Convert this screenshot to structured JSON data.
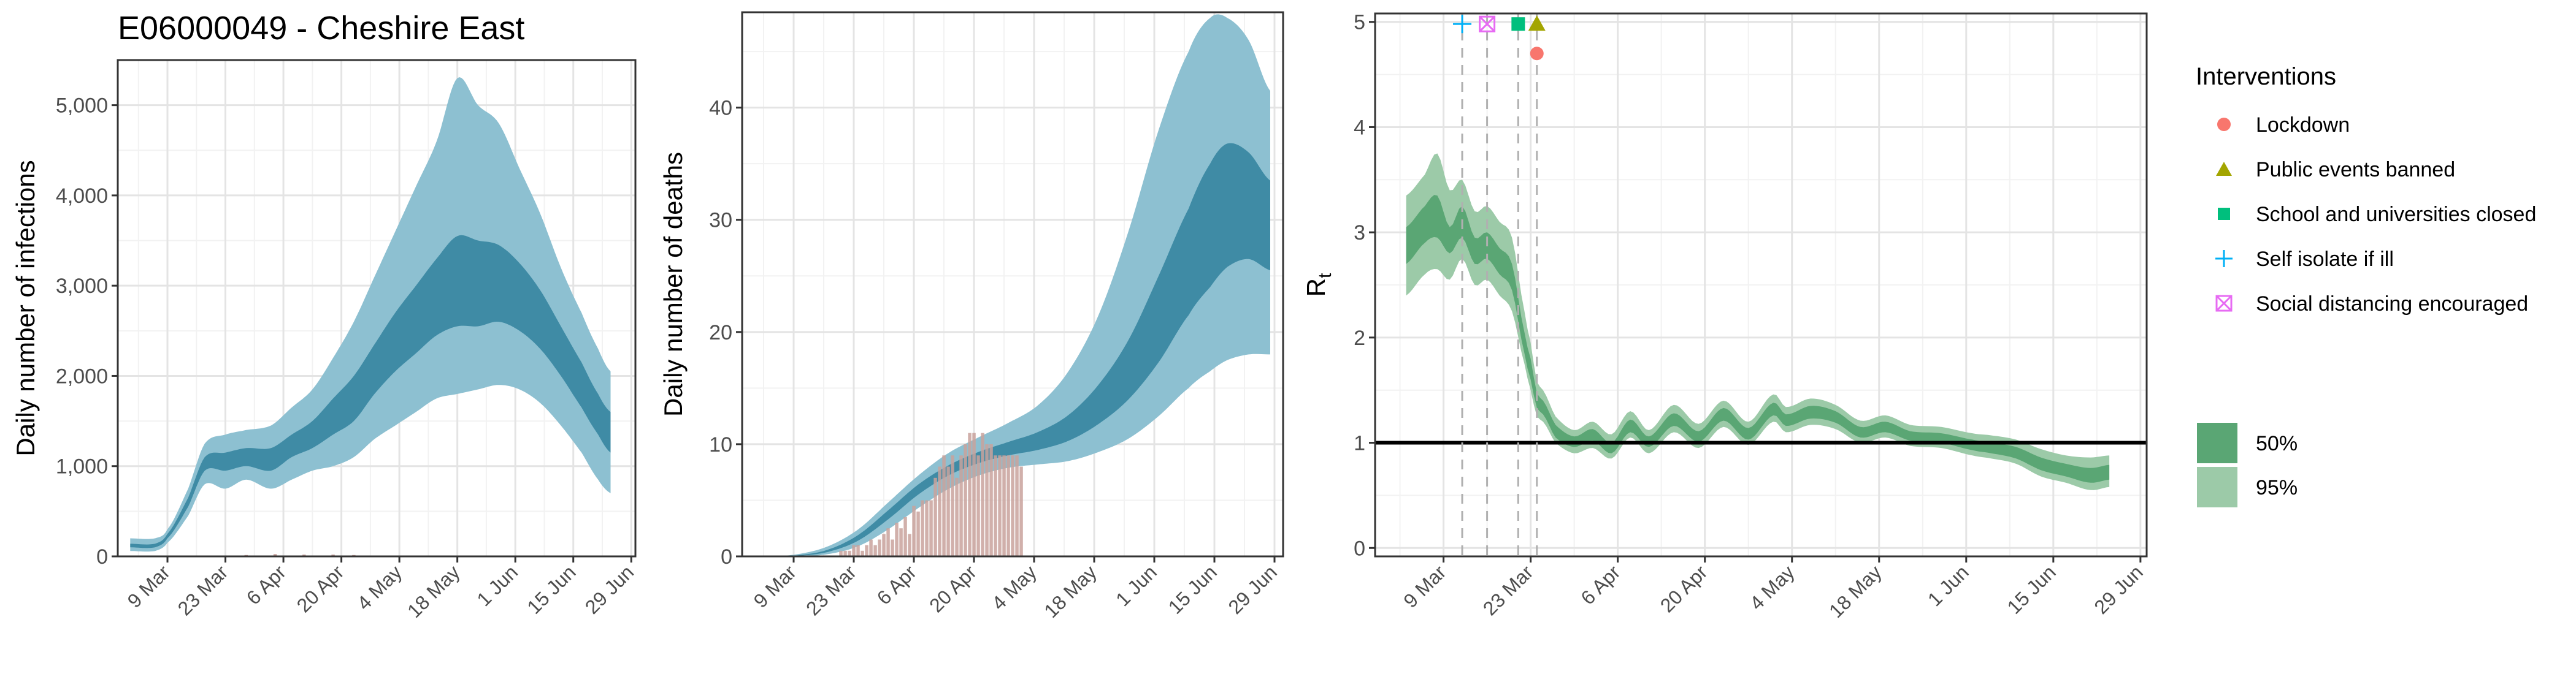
{
  "title": "E06000049 - Cheshire East",
  "colors": {
    "infection_band_95": "#8dc0d1",
    "infection_band_50": "#3f8ba5",
    "deaths_band_95": "#8dc0d1",
    "deaths_band_50": "#3f8ba5",
    "observed_deaths_bar": "#c9a29c",
    "rt_band_95": "#9ccaa8",
    "rt_band_50": "#5aa674",
    "rt_reference_line": "#000000",
    "lockdown": "#f8766d",
    "public_events_banned": "#a3a500",
    "school_closed": "#00bf7d",
    "self_isolate": "#00b0f6",
    "social_distancing": "#e76bf3"
  },
  "legend": {
    "interventions_title": "Interventions",
    "items": [
      {
        "label": "Lockdown",
        "icon": "circle-icon"
      },
      {
        "label": "Public events banned",
        "icon": "triangle-icon"
      },
      {
        "label": "School and universities closed",
        "icon": "square-icon"
      },
      {
        "label": "Self isolate if ill",
        "icon": "plus-icon"
      },
      {
        "label": "Social distancing encouraged",
        "icon": "boxed-x-icon"
      }
    ],
    "bands": [
      {
        "label": "50%"
      },
      {
        "label": "95%"
      }
    ]
  },
  "chart_data": [
    {
      "type": "area",
      "id": "infections",
      "title": "E06000049 - Cheshire East",
      "xlabel": "",
      "ylabel": "Daily number of infections",
      "x_start": "2020-02-29",
      "x_end": "2020-06-24",
      "xlim": [
        "2020-02-26",
        "2020-06-30"
      ],
      "ylim": [
        0,
        5500
      ],
      "x_ticks": [
        "9 Mar",
        "23 Mar",
        "6 Apr",
        "20 Apr",
        "4 May",
        "18 May",
        "1 Jun",
        "15 Jun",
        "29 Jun"
      ],
      "x_tick_dates": [
        "2020-03-09",
        "2020-03-23",
        "2020-04-06",
        "2020-04-20",
        "2020-05-04",
        "2020-05-18",
        "2020-06-01",
        "2020-06-15",
        "2020-06-29"
      ],
      "y_ticks": [
        "0",
        "1,000",
        "2,000",
        "3,000",
        "4,000",
        "5,000"
      ],
      "y_tick_values": [
        0,
        1000,
        2000,
        3000,
        4000,
        5000
      ],
      "grid": true,
      "knots": [
        {
          "x": "2020-02-29",
          "lo95": 60,
          "lo50": 100,
          "hi50": 140,
          "hi95": 200
        },
        {
          "x": "2020-03-06",
          "lo95": 60,
          "lo50": 100,
          "hi50": 140,
          "hi95": 200
        },
        {
          "x": "2020-03-09",
          "lo95": 150,
          "lo50": 200,
          "hi50": 250,
          "hi95": 300
        },
        {
          "x": "2020-03-14",
          "lo95": 450,
          "lo50": 550,
          "hi50": 650,
          "hi95": 750
        },
        {
          "x": "2020-03-18",
          "lo95": 800,
          "lo50": 950,
          "hi50": 1100,
          "hi95": 1250
        },
        {
          "x": "2020-03-23",
          "lo95": 750,
          "lo50": 950,
          "hi50": 1150,
          "hi95": 1350
        },
        {
          "x": "2020-03-28",
          "lo95": 850,
          "lo50": 1000,
          "hi50": 1200,
          "hi95": 1400
        },
        {
          "x": "2020-04-03",
          "lo95": 750,
          "lo50": 950,
          "hi50": 1200,
          "hi95": 1450
        },
        {
          "x": "2020-04-08",
          "lo95": 850,
          "lo50": 1100,
          "hi50": 1350,
          "hi95": 1650
        },
        {
          "x": "2020-04-13",
          "lo95": 950,
          "lo50": 1200,
          "hi50": 1500,
          "hi95": 1850
        },
        {
          "x": "2020-04-18",
          "lo95": 1000,
          "lo50": 1350,
          "hi50": 1750,
          "hi95": 2200
        },
        {
          "x": "2020-04-23",
          "lo95": 1100,
          "lo50": 1500,
          "hi50": 2000,
          "hi95": 2600
        },
        {
          "x": "2020-04-28",
          "lo95": 1300,
          "lo50": 1800,
          "hi50": 2350,
          "hi95": 3100
        },
        {
          "x": "2020-05-03",
          "lo95": 1450,
          "lo50": 2050,
          "hi50": 2700,
          "hi95": 3600
        },
        {
          "x": "2020-05-08",
          "lo95": 1600,
          "lo50": 2250,
          "hi50": 3000,
          "hi95": 4100
        },
        {
          "x": "2020-05-13",
          "lo95": 1750,
          "lo50": 2450,
          "hi50": 3300,
          "hi95": 4600
        },
        {
          "x": "2020-05-18",
          "lo95": 1800,
          "lo50": 2550,
          "hi50": 3550,
          "hi95": 5300
        },
        {
          "x": "2020-05-23",
          "lo95": 1850,
          "lo50": 2550,
          "hi50": 3500,
          "hi95": 5000
        },
        {
          "x": "2020-05-28",
          "lo95": 1900,
          "lo50": 2600,
          "hi50": 3450,
          "hi95": 4800
        },
        {
          "x": "2020-06-02",
          "lo95": 1850,
          "lo50": 2500,
          "hi50": 3250,
          "hi95": 4300
        },
        {
          "x": "2020-06-07",
          "lo95": 1700,
          "lo50": 2300,
          "hi50": 2950,
          "hi95": 3800
        },
        {
          "x": "2020-06-12",
          "lo95": 1450,
          "lo50": 2000,
          "hi50": 2550,
          "hi95": 3200
        },
        {
          "x": "2020-06-17",
          "lo95": 1150,
          "lo50": 1650,
          "hi50": 2150,
          "hi95": 2700
        },
        {
          "x": "2020-06-21",
          "lo95": 850,
          "lo50": 1350,
          "hi50": 1800,
          "hi95": 2300
        },
        {
          "x": "2020-06-24",
          "lo95": 700,
          "lo50": 1150,
          "hi50": 1600,
          "hi95": 2050
        }
      ],
      "observed": [
        {
          "x": "2020-03-28",
          "y": 15
        },
        {
          "x": "2020-04-04",
          "y": 25
        },
        {
          "x": "2020-04-11",
          "y": 20
        },
        {
          "x": "2020-04-18",
          "y": 20
        },
        {
          "x": "2020-04-23",
          "y": 15
        }
      ]
    },
    {
      "type": "area",
      "id": "deaths",
      "title": "",
      "xlabel": "",
      "ylabel": "Daily number of deaths",
      "x_start": "2020-03-03",
      "x_end": "2020-06-28",
      "xlim": [
        "2020-02-26",
        "2020-07-01"
      ],
      "ylim": [
        0,
        48.5
      ],
      "x_ticks": [
        "9 Mar",
        "23 Mar",
        "6 Apr",
        "20 Apr",
        "4 May",
        "18 May",
        "1 Jun",
        "15 Jun",
        "29 Jun"
      ],
      "x_tick_dates": [
        "2020-03-09",
        "2020-03-23",
        "2020-04-06",
        "2020-04-20",
        "2020-05-04",
        "2020-05-18",
        "2020-06-01",
        "2020-06-15",
        "2020-06-29"
      ],
      "y_ticks": [
        "0",
        "10",
        "20",
        "30",
        "40"
      ],
      "y_tick_values": [
        0,
        10,
        20,
        30,
        40
      ],
      "grid": true,
      "knots": [
        {
          "x": "2020-03-03",
          "lo95": 0,
          "lo50": 0,
          "hi50": 0,
          "hi95": 0
        },
        {
          "x": "2020-03-10",
          "lo95": 0,
          "lo50": 0.05,
          "hi50": 0.1,
          "hi95": 0.2
        },
        {
          "x": "2020-03-17",
          "lo95": 0.2,
          "lo50": 0.4,
          "hi50": 0.6,
          "hi95": 0.9
        },
        {
          "x": "2020-03-24",
          "lo95": 0.9,
          "lo50": 1.4,
          "hi50": 1.9,
          "hi95": 2.4
        },
        {
          "x": "2020-03-31",
          "lo95": 2.4,
          "lo50": 3.3,
          "hi50": 4.1,
          "hi95": 4.8
        },
        {
          "x": "2020-04-07",
          "lo95": 4.3,
          "lo50": 5.5,
          "hi50": 6.4,
          "hi95": 7.2
        },
        {
          "x": "2020-04-14",
          "lo95": 6.0,
          "lo50": 7.2,
          "hi50": 8.1,
          "hi95": 9.2
        },
        {
          "x": "2020-04-21",
          "lo95": 7.2,
          "lo50": 8.3,
          "hi50": 9.3,
          "hi95": 10.6
        },
        {
          "x": "2020-04-28",
          "lo95": 7.9,
          "lo50": 9.0,
          "hi50": 10.2,
          "hi95": 11.9
        },
        {
          "x": "2020-05-05",
          "lo95": 8.2,
          "lo50": 9.5,
          "hi50": 11.1,
          "hi95": 13.5
        },
        {
          "x": "2020-05-12",
          "lo95": 8.5,
          "lo50": 10.3,
          "hi50": 12.6,
          "hi95": 16.5
        },
        {
          "x": "2020-05-19",
          "lo95": 9.3,
          "lo50": 11.8,
          "hi50": 15.3,
          "hi95": 21.5
        },
        {
          "x": "2020-05-26",
          "lo95": 10.5,
          "lo50": 14.0,
          "hi50": 19.3,
          "hi95": 29.0
        },
        {
          "x": "2020-06-02",
          "lo95": 12.5,
          "lo50": 17.3,
          "hi50": 25.0,
          "hi95": 38.0
        },
        {
          "x": "2020-06-09",
          "lo95": 15.0,
          "lo50": 21.5,
          "hi50": 31.0,
          "hi95": 45.0
        },
        {
          "x": "2020-06-14",
          "lo95": 16.5,
          "lo50": 24.0,
          "hi50": 35.0,
          "hi95": 48.0
        },
        {
          "x": "2020-06-18",
          "lo95": 17.5,
          "lo50": 25.8,
          "hi50": 36.8,
          "hi95": 48.0
        },
        {
          "x": "2020-06-23",
          "lo95": 18.0,
          "lo50": 26.5,
          "hi50": 36.0,
          "hi95": 46.0
        },
        {
          "x": "2020-06-28",
          "lo95": 18.0,
          "lo50": 25.5,
          "hi50": 33.5,
          "hi95": 41.5
        }
      ],
      "bars": [
        {
          "x": "2020-03-20",
          "y": 0.5
        },
        {
          "x": "2020-03-21",
          "y": 0.5
        },
        {
          "x": "2020-03-22",
          "y": 0.5
        },
        {
          "x": "2020-03-23",
          "y": 1
        },
        {
          "x": "2020-03-24",
          "y": 1
        },
        {
          "x": "2020-03-25",
          "y": 0.5
        },
        {
          "x": "2020-03-26",
          "y": 1
        },
        {
          "x": "2020-03-27",
          "y": 1.5
        },
        {
          "x": "2020-03-28",
          "y": 1
        },
        {
          "x": "2020-03-29",
          "y": 1.5
        },
        {
          "x": "2020-03-30",
          "y": 2
        },
        {
          "x": "2020-03-31",
          "y": 2.5
        },
        {
          "x": "2020-04-01",
          "y": 1.5
        },
        {
          "x": "2020-04-02",
          "y": 3
        },
        {
          "x": "2020-04-03",
          "y": 2.5
        },
        {
          "x": "2020-04-04",
          "y": 3.5
        },
        {
          "x": "2020-04-05",
          "y": 2
        },
        {
          "x": "2020-04-06",
          "y": 4.5
        },
        {
          "x": "2020-04-07",
          "y": 4
        },
        {
          "x": "2020-04-08",
          "y": 5
        },
        {
          "x": "2020-04-09",
          "y": 5
        },
        {
          "x": "2020-04-10",
          "y": 5
        },
        {
          "x": "2020-04-11",
          "y": 7
        },
        {
          "x": "2020-04-12",
          "y": 8
        },
        {
          "x": "2020-04-13",
          "y": 9
        },
        {
          "x": "2020-04-14",
          "y": 8
        },
        {
          "x": "2020-04-15",
          "y": 9
        },
        {
          "x": "2020-04-16",
          "y": 7
        },
        {
          "x": "2020-04-17",
          "y": 9
        },
        {
          "x": "2020-04-18",
          "y": 10
        },
        {
          "x": "2020-04-19",
          "y": 11
        },
        {
          "x": "2020-04-20",
          "y": 11
        },
        {
          "x": "2020-04-21",
          "y": 9
        },
        {
          "x": "2020-04-22",
          "y": 11
        },
        {
          "x": "2020-04-23",
          "y": 10
        },
        {
          "x": "2020-04-24",
          "y": 10
        },
        {
          "x": "2020-04-25",
          "y": 9
        },
        {
          "x": "2020-04-26",
          "y": 9
        },
        {
          "x": "2020-04-27",
          "y": 9
        },
        {
          "x": "2020-04-28",
          "y": 9
        },
        {
          "x": "2020-04-29",
          "y": 9
        },
        {
          "x": "2020-04-30",
          "y": 9
        },
        {
          "x": "2020-05-01",
          "y": 8
        }
      ]
    },
    {
      "type": "line",
      "id": "rt",
      "title": "",
      "xlabel": "",
      "ylabel": "R",
      "ylabel_subscript": "t",
      "x_start": "2020-03-03",
      "x_end": "2020-06-24",
      "xlim": [
        "2020-02-27",
        "2020-06-30"
      ],
      "ylim": [
        -0.08,
        5.08
      ],
      "x_ticks": [
        "9 Mar",
        "23 Mar",
        "6 Apr",
        "20 Apr",
        "4 May",
        "18 May",
        "1 Jun",
        "15 Jun",
        "29 Jun"
      ],
      "x_tick_dates": [
        "2020-03-09",
        "2020-03-23",
        "2020-04-06",
        "2020-04-20",
        "2020-05-04",
        "2020-05-18",
        "2020-06-01",
        "2020-06-15",
        "2020-06-29"
      ],
      "y_ticks": [
        "0",
        "1",
        "2",
        "3",
        "4",
        "5"
      ],
      "y_tick_values": [
        0,
        1,
        2,
        3,
        4,
        5
      ],
      "grid": true,
      "reference_line": 1,
      "knots": [
        {
          "x": "2020-03-03",
          "lo95": 2.4,
          "lo50": 2.7,
          "hi50": 3.05,
          "hi95": 3.35
        },
        {
          "x": "2020-03-06",
          "lo95": 2.6,
          "lo50": 2.9,
          "hi50": 3.25,
          "hi95": 3.55
        },
        {
          "x": "2020-03-08",
          "lo95": 2.65,
          "lo50": 2.95,
          "hi50": 3.35,
          "hi95": 3.75
        },
        {
          "x": "2020-03-10",
          "lo95": 2.55,
          "lo50": 2.8,
          "hi50": 3.05,
          "hi95": 3.4
        },
        {
          "x": "2020-03-12",
          "lo95": 2.75,
          "lo50": 2.95,
          "hi50": 3.25,
          "hi95": 3.5
        },
        {
          "x": "2020-03-14",
          "lo95": 2.5,
          "lo50": 2.7,
          "hi50": 2.95,
          "hi95": 3.2
        },
        {
          "x": "2020-03-16",
          "lo95": 2.55,
          "lo50": 2.75,
          "hi50": 3.0,
          "hi95": 3.25
        },
        {
          "x": "2020-03-18",
          "lo95": 2.4,
          "lo50": 2.6,
          "hi50": 2.85,
          "hi95": 3.1
        },
        {
          "x": "2020-03-20",
          "lo95": 2.25,
          "lo50": 2.45,
          "hi50": 2.7,
          "hi95": 2.95
        },
        {
          "x": "2020-03-22",
          "lo95": 1.75,
          "lo50": 1.85,
          "hi50": 2.05,
          "hi95": 2.25
        },
        {
          "x": "2020-03-23",
          "lo95": 1.5,
          "lo50": 1.6,
          "hi50": 1.8,
          "hi95": 1.95
        },
        {
          "x": "2020-03-24",
          "lo95": 1.25,
          "lo50": 1.33,
          "hi50": 1.47,
          "hi95": 1.58
        },
        {
          "x": "2020-03-25",
          "lo95": 1.2,
          "lo50": 1.27,
          "hi50": 1.4,
          "hi95": 1.5
        },
        {
          "x": "2020-03-27",
          "lo95": 1.0,
          "lo50": 1.05,
          "hi50": 1.17,
          "hi95": 1.25
        },
        {
          "x": "2020-03-30",
          "lo95": 0.9,
          "lo50": 0.96,
          "hi50": 1.06,
          "hi95": 1.12
        },
        {
          "x": "2020-04-02",
          "lo95": 0.95,
          "lo50": 1.02,
          "hi50": 1.13,
          "hi95": 1.2
        },
        {
          "x": "2020-04-05",
          "lo95": 0.85,
          "lo50": 0.9,
          "hi50": 1.0,
          "hi95": 1.08
        },
        {
          "x": "2020-04-08",
          "lo95": 1.05,
          "lo50": 1.1,
          "hi50": 1.22,
          "hi95": 1.3
        },
        {
          "x": "2020-04-11",
          "lo95": 0.9,
          "lo50": 0.96,
          "hi50": 1.06,
          "hi95": 1.12
        },
        {
          "x": "2020-04-15",
          "lo95": 1.1,
          "lo50": 1.16,
          "hi50": 1.28,
          "hi95": 1.36
        },
        {
          "x": "2020-04-19",
          "lo95": 0.95,
          "lo50": 1.01,
          "hi50": 1.11,
          "hi95": 1.18
        },
        {
          "x": "2020-04-23",
          "lo95": 1.15,
          "lo50": 1.21,
          "hi50": 1.33,
          "hi95": 1.4
        },
        {
          "x": "2020-04-27",
          "lo95": 0.98,
          "lo50": 1.03,
          "hi50": 1.14,
          "hi95": 1.2
        },
        {
          "x": "2020-05-01",
          "lo95": 1.2,
          "lo50": 1.26,
          "hi50": 1.38,
          "hi95": 1.46
        },
        {
          "x": "2020-05-03",
          "lo95": 1.1,
          "lo50": 1.16,
          "hi50": 1.27,
          "hi95": 1.34
        },
        {
          "x": "2020-05-07",
          "lo95": 1.17,
          "lo50": 1.23,
          "hi50": 1.35,
          "hi95": 1.42
        },
        {
          "x": "2020-05-11",
          "lo95": 1.13,
          "lo50": 1.19,
          "hi50": 1.3,
          "hi95": 1.36
        },
        {
          "x": "2020-05-15",
          "lo95": 1.0,
          "lo50": 1.05,
          "hi50": 1.15,
          "hi95": 1.21
        },
        {
          "x": "2020-05-19",
          "lo95": 1.05,
          "lo50": 1.1,
          "hi50": 1.2,
          "hi95": 1.26
        },
        {
          "x": "2020-05-23",
          "lo95": 0.97,
          "lo50": 1.02,
          "hi50": 1.11,
          "hi95": 1.17
        },
        {
          "x": "2020-05-28",
          "lo95": 0.95,
          "lo50": 1.0,
          "hi50": 1.09,
          "hi95": 1.15
        },
        {
          "x": "2020-06-02",
          "lo95": 0.88,
          "lo50": 0.93,
          "hi50": 1.03,
          "hi95": 1.09
        },
        {
          "x": "2020-06-05",
          "lo95": 0.85,
          "lo50": 0.9,
          "hi50": 1.0,
          "hi95": 1.07
        },
        {
          "x": "2020-06-09",
          "lo95": 0.8,
          "lo50": 0.85,
          "hi50": 0.96,
          "hi95": 1.03
        },
        {
          "x": "2020-06-13",
          "lo95": 0.68,
          "lo50": 0.74,
          "hi50": 0.86,
          "hi95": 0.94
        },
        {
          "x": "2020-06-17",
          "lo95": 0.62,
          "lo50": 0.68,
          "hi50": 0.8,
          "hi95": 0.88
        },
        {
          "x": "2020-06-21",
          "lo95": 0.55,
          "lo50": 0.62,
          "hi50": 0.76,
          "hi95": 0.86
        },
        {
          "x": "2020-06-24",
          "lo95": 0.58,
          "lo50": 0.65,
          "hi50": 0.79,
          "hi95": 0.88
        }
      ],
      "interventions": [
        {
          "name": "Self isolate if ill",
          "x": "2020-03-12",
          "y": 4.98,
          "marker": "plus"
        },
        {
          "name": "Social distancing encouraged",
          "x": "2020-03-16",
          "y": 4.98,
          "marker": "boxed-x"
        },
        {
          "name": "School and universities closed",
          "x": "2020-03-21",
          "y": 4.98,
          "marker": "square"
        },
        {
          "name": "Public events banned",
          "x": "2020-03-24",
          "y": 4.98,
          "marker": "triangle"
        },
        {
          "name": "Lockdown",
          "x": "2020-03-24",
          "y": 4.7,
          "marker": "circle"
        }
      ]
    }
  ]
}
